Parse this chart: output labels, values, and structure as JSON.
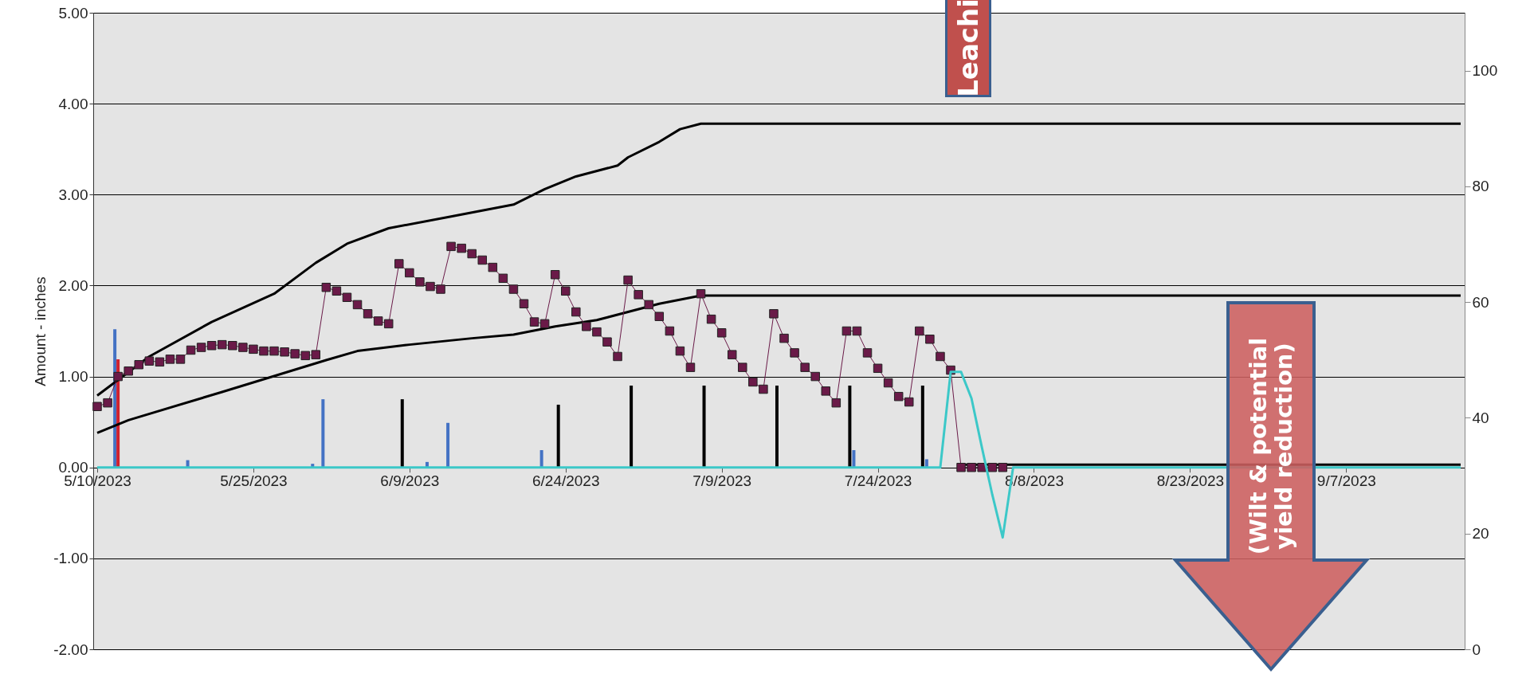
{
  "chart_data": {
    "type": "line",
    "ylabel": "Amount - inches",
    "x": [
      "2023-05-10",
      "2023-05-11",
      "2023-05-12",
      "2023-05-13",
      "2023-05-14",
      "2023-05-15",
      "2023-05-16",
      "2023-05-17",
      "2023-05-18",
      "2023-05-19",
      "2023-05-20",
      "2023-05-21",
      "2023-05-22",
      "2023-05-23",
      "2023-05-24",
      "2023-05-25",
      "2023-05-26",
      "2023-05-27",
      "2023-05-28",
      "2023-05-29",
      "2023-05-30",
      "2023-05-31",
      "2023-06-01",
      "2023-06-02",
      "2023-06-03",
      "2023-06-04",
      "2023-06-05",
      "2023-06-06",
      "2023-06-07",
      "2023-06-08",
      "2023-06-09",
      "2023-06-10",
      "2023-06-11",
      "2023-06-12",
      "2023-06-13",
      "2023-06-14",
      "2023-06-15",
      "2023-06-16",
      "2023-06-17",
      "2023-06-18",
      "2023-06-19",
      "2023-06-20",
      "2023-06-21",
      "2023-06-22",
      "2023-06-23",
      "2023-06-24",
      "2023-06-25",
      "2023-06-26",
      "2023-06-27",
      "2023-06-28",
      "2023-06-29",
      "2023-06-30",
      "2023-07-01",
      "2023-07-02",
      "2023-07-03",
      "2023-07-04",
      "2023-07-05",
      "2023-07-06",
      "2023-07-07",
      "2023-07-08",
      "2023-07-09",
      "2023-07-10",
      "2023-07-11",
      "2023-07-12",
      "2023-07-13",
      "2023-07-14",
      "2023-07-15",
      "2023-07-16",
      "2023-07-17",
      "2023-07-18",
      "2023-07-19",
      "2023-07-20",
      "2023-07-21",
      "2023-07-22",
      "2023-07-23",
      "2023-07-24",
      "2023-07-25",
      "2023-07-26",
      "2023-07-27",
      "2023-07-28",
      "2023-07-29",
      "2023-07-30",
      "2023-07-31",
      "2023-08-01",
      "2023-08-02",
      "2023-08-03",
      "2023-08-04",
      "2023-08-05"
    ],
    "series": [
      {
        "type": "bar",
        "color": "#4472c4",
        "x": [
          "2023-05-12",
          "2023-05-19",
          "2023-05-31",
          "2023-06-01",
          "2023-06-11",
          "2023-06-13",
          "2023-06-22",
          "2023-07-22",
          "2023-07-29"
        ],
        "values": [
          1.52,
          0.08,
          0.04,
          0.75,
          0.06,
          0.49,
          0.19,
          0.19,
          0.09
        ]
      },
      {
        "type": "bar",
        "color": "#d0202f",
        "x": [
          "2023-05-12"
        ],
        "values": [
          1.19
        ]
      },
      {
        "type": "bar",
        "color": "#000000",
        "x": [
          "2023-06-08",
          "2023-06-23",
          "2023-06-30",
          "2023-07-07",
          "2023-07-14",
          "2023-07-21",
          "2023-07-28"
        ],
        "values": [
          0.75,
          0.69,
          0.9,
          0.9,
          0.9,
          0.9,
          0.9
        ]
      },
      {
        "color": "#000000",
        "x": [
          "2023-05-10",
          "2023-05-15",
          "2023-05-21",
          "2023-05-27",
          "2023-05-31",
          "2023-06-03",
          "2023-06-07",
          "2023-06-13",
          "2023-06-19",
          "2023-06-22",
          "2023-06-25",
          "2023-06-29",
          "2023-06-30",
          "2023-07-03",
          "2023-07-05",
          "2023-07-07",
          "2023-09-18"
        ],
        "values": [
          0.79,
          1.22,
          1.6,
          1.91,
          2.25,
          2.46,
          2.63,
          2.76,
          2.89,
          3.06,
          3.2,
          3.32,
          3.41,
          3.58,
          3.72,
          3.78,
          3.78
        ]
      },
      {
        "color": "#000000",
        "x": [
          "2023-05-10",
          "2023-05-13",
          "2023-05-22",
          "2023-06-01",
          "2023-06-04",
          "2023-06-09",
          "2023-06-15",
          "2023-06-19",
          "2023-06-23",
          "2023-06-27",
          "2023-07-03",
          "2023-07-07",
          "2023-09-18"
        ],
        "values": [
          0.38,
          0.52,
          0.83,
          1.18,
          1.28,
          1.35,
          1.42,
          1.46,
          1.55,
          1.62,
          1.8,
          1.89,
          1.89
        ]
      },
      {
        "color": "#000000",
        "x": [
          "2023-08-01",
          "2023-09-18"
        ],
        "values": [
          0.03,
          0.03
        ]
      },
      {
        "color": "#6a1a48",
        "marker": "square",
        "values": [
          0.67,
          0.71,
          1.0,
          1.06,
          1.13,
          1.17,
          1.16,
          1.19,
          1.19,
          1.29,
          1.32,
          1.34,
          1.35,
          1.34,
          1.32,
          1.3,
          1.28,
          1.28,
          1.27,
          1.25,
          1.23,
          1.24,
          1.98,
          1.94,
          1.87,
          1.79,
          1.69,
          1.61,
          1.58,
          2.24,
          2.14,
          2.04,
          1.99,
          1.96,
          2.43,
          2.41,
          2.35,
          2.28,
          2.2,
          2.08,
          1.96,
          1.8,
          1.6,
          1.58,
          2.12,
          1.94,
          1.71,
          1.55,
          1.49,
          1.38,
          1.22,
          2.06,
          1.9,
          1.79,
          1.66,
          1.5,
          1.28,
          1.1,
          1.91,
          1.63,
          1.48,
          1.24,
          1.1,
          0.94,
          0.86,
          1.69,
          1.42,
          1.26,
          1.1,
          1.0,
          0.84,
          0.71,
          1.5,
          1.5,
          1.26,
          1.09,
          0.93,
          0.78,
          0.72,
          1.5,
          1.41,
          1.22,
          1.07,
          0,
          0,
          0,
          0,
          0
        ]
      },
      {
        "color": "#3cc8c8",
        "x": [
          "2023-05-10",
          "2023-07-30",
          "2023-07-31",
          "2023-08-01",
          "2023-08-02",
          "2023-08-03",
          "2023-08-04",
          "2023-08-05",
          "2023-08-06",
          "2023-09-18"
        ],
        "values": [
          0,
          0,
          1.05,
          1.05,
          0.76,
          0.22,
          -0.3,
          -0.77,
          0,
          0
        ]
      }
    ],
    "xlim": [
      "2023-05-10",
      "2023-09-18"
    ],
    "xticks": [
      {
        "value": "2023-05-10",
        "label": "5/10/2023"
      },
      {
        "value": "2023-05-25",
        "label": "5/25/2023"
      },
      {
        "value": "2023-06-09",
        "label": "6/9/2023"
      },
      {
        "value": "2023-06-24",
        "label": "6/24/2023"
      },
      {
        "value": "2023-07-09",
        "label": "7/9/2023"
      },
      {
        "value": "2023-07-24",
        "label": "7/24/2023"
      },
      {
        "value": "2023-08-08",
        "label": "8/8/2023"
      },
      {
        "value": "2023-08-23",
        "label": "8/23/2023"
      },
      {
        "value": "2023-09-07",
        "label": "9/7/2023"
      }
    ],
    "ylim": [
      -2,
      5
    ],
    "yticks": [
      {
        "value": -2,
        "label": "-2.00"
      },
      {
        "value": -1,
        "label": "-1.00"
      },
      {
        "value": 0,
        "label": "0.00"
      },
      {
        "value": 1,
        "label": "1.00"
      },
      {
        "value": 2,
        "label": "2.00"
      },
      {
        "value": 3,
        "label": "3.00"
      },
      {
        "value": 4,
        "label": "4.00"
      },
      {
        "value": 5,
        "label": "5.00"
      }
    ],
    "y2lim": [
      0,
      110
    ],
    "y2ticks": [
      0,
      20,
      40,
      60,
      80,
      100
    ],
    "grid": "y",
    "annotations": [
      "Leachi",
      "(Wilt & potential yield reduction)"
    ]
  }
}
